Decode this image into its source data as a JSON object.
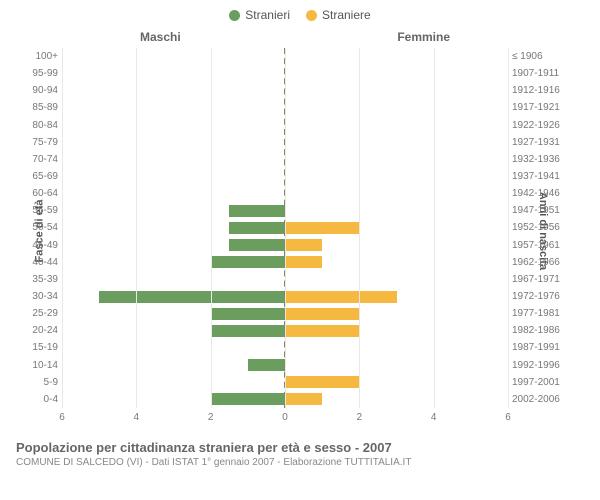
{
  "legend": {
    "male": {
      "label": "Stranieri",
      "color": "#6b9d5f"
    },
    "female": {
      "label": "Straniere",
      "color": "#f5b942"
    }
  },
  "chart": {
    "type": "bar",
    "side_title_male": "Maschi",
    "side_title_female": "Femmine",
    "y_axis_left_title": "Fasce di età",
    "y_axis_right_title": "Anni di nascita",
    "x_max": 6,
    "x_ticks": [
      6,
      4,
      2,
      0,
      2,
      4,
      6
    ],
    "grid_color": "#e8e8e8",
    "center_color": "#888855",
    "background_color": "#ffffff",
    "rows": [
      {
        "age": "100+",
        "birth": "≤ 1906",
        "m": 0,
        "f": 0
      },
      {
        "age": "95-99",
        "birth": "1907-1911",
        "m": 0,
        "f": 0
      },
      {
        "age": "90-94",
        "birth": "1912-1916",
        "m": 0,
        "f": 0
      },
      {
        "age": "85-89",
        "birth": "1917-1921",
        "m": 0,
        "f": 0
      },
      {
        "age": "80-84",
        "birth": "1922-1926",
        "m": 0,
        "f": 0
      },
      {
        "age": "75-79",
        "birth": "1927-1931",
        "m": 0,
        "f": 0
      },
      {
        "age": "70-74",
        "birth": "1932-1936",
        "m": 0,
        "f": 0
      },
      {
        "age": "65-69",
        "birth": "1937-1941",
        "m": 0,
        "f": 0
      },
      {
        "age": "60-64",
        "birth": "1942-1946",
        "m": 0,
        "f": 0
      },
      {
        "age": "55-59",
        "birth": "1947-1951",
        "m": 1.5,
        "f": 0
      },
      {
        "age": "50-54",
        "birth": "1952-1956",
        "m": 1.5,
        "f": 2
      },
      {
        "age": "45-49",
        "birth": "1957-1961",
        "m": 1.5,
        "f": 1
      },
      {
        "age": "40-44",
        "birth": "1962-1966",
        "m": 2,
        "f": 1
      },
      {
        "age": "35-39",
        "birth": "1967-1971",
        "m": 0,
        "f": 0
      },
      {
        "age": "30-34",
        "birth": "1972-1976",
        "m": 5,
        "f": 3
      },
      {
        "age": "25-29",
        "birth": "1977-1981",
        "m": 2,
        "f": 2
      },
      {
        "age": "20-24",
        "birth": "1982-1986",
        "m": 2,
        "f": 2
      },
      {
        "age": "15-19",
        "birth": "1987-1991",
        "m": 0,
        "f": 0
      },
      {
        "age": "10-14",
        "birth": "1992-1996",
        "m": 1,
        "f": 0
      },
      {
        "age": "5-9",
        "birth": "1997-2001",
        "m": 0,
        "f": 2
      },
      {
        "age": "0-4",
        "birth": "2002-2006",
        "m": 2,
        "f": 1
      }
    ]
  },
  "caption": {
    "title": "Popolazione per cittadinanza straniera per età e sesso - 2007",
    "subtitle": "COMUNE DI SALCEDO (VI) - Dati ISTAT 1° gennaio 2007 - Elaborazione TUTTITALIA.IT"
  }
}
